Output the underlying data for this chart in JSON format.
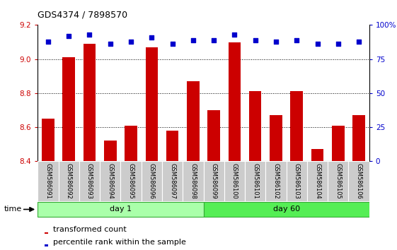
{
  "title": "GDS4374 / 7898570",
  "samples": [
    "GSM586091",
    "GSM586092",
    "GSM586093",
    "GSM586094",
    "GSM586095",
    "GSM586096",
    "GSM586097",
    "GSM586098",
    "GSM586099",
    "GSM586100",
    "GSM586101",
    "GSM586102",
    "GSM586103",
    "GSM586104",
    "GSM586105",
    "GSM586106"
  ],
  "bar_values": [
    8.65,
    9.01,
    9.09,
    8.52,
    8.61,
    9.07,
    8.58,
    8.87,
    8.7,
    9.1,
    8.81,
    8.67,
    8.81,
    8.47,
    8.61,
    8.67
  ],
  "percentile_values": [
    88,
    92,
    93,
    86,
    88,
    91,
    86,
    89,
    89,
    93,
    89,
    88,
    89,
    86,
    86,
    88
  ],
  "bar_color": "#cc0000",
  "percentile_color": "#0000cc",
  "ylim_left": [
    8.4,
    9.2
  ],
  "ylim_right": [
    0,
    100
  ],
  "yticks_left": [
    8.4,
    8.6,
    8.8,
    9.0,
    9.2
  ],
  "yticks_right": [
    0,
    25,
    50,
    75,
    100
  ],
  "ytick_labels_right": [
    "0",
    "25",
    "50",
    "75",
    "100%"
  ],
  "grid_values": [
    8.6,
    8.8,
    9.0
  ],
  "day1_samples": 8,
  "day60_samples": 8,
  "day1_color": "#aaffaa",
  "day60_color": "#55ee55",
  "right_axis_color": "#0000cc",
  "tick_bg_color": "#cccccc",
  "bar_color_legend": "#cc0000",
  "percentile_color_legend": "#0000cc"
}
